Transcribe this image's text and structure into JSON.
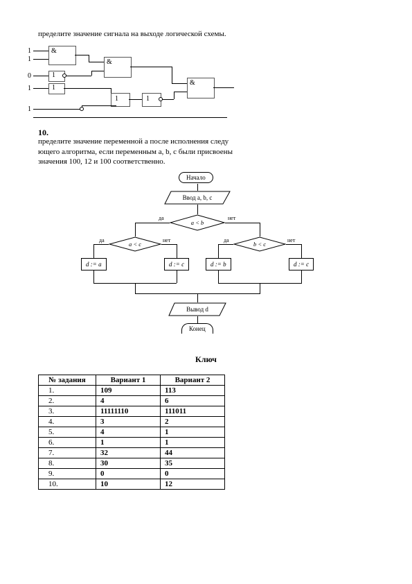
{
  "task9": {
    "text": "пределите значение сигнала на выходе логической схемы.",
    "inputs": [
      "1",
      "1",
      "0",
      "1",
      "1"
    ],
    "gates": {
      "and": "&",
      "one": "1"
    }
  },
  "task10": {
    "num": "10.",
    "text1": "пределите значение переменной a после исполнения следу",
    "text2": "ющего алгоритма, если переменным a, b, c были присвоены",
    "text3": "значения 100, 12 и 100 соответственно."
  },
  "flowchart": {
    "start": "Начало",
    "input": "Ввод a, b, c",
    "dec1": "a < b",
    "dec2": "a < c",
    "dec3": "b < c",
    "p1": "d := a",
    "p2": "d := c",
    "p3": "d := b",
    "p4": "d := c",
    "output": "Вывод d",
    "end": "Конец",
    "yes": "да",
    "no": "нет"
  },
  "key": {
    "title": "Ключ",
    "columns": [
      "№ задания",
      "Вариант 1",
      "Вариант 2"
    ],
    "rows": [
      [
        "1.",
        "109",
        "113"
      ],
      [
        "2.",
        "4",
        "6"
      ],
      [
        "3.",
        "11111110",
        "111011"
      ],
      [
        "4.",
        "3",
        "2"
      ],
      [
        "5.",
        "4",
        "1"
      ],
      [
        "6.",
        "1",
        "1"
      ],
      [
        "7.",
        "32",
        "44"
      ],
      [
        "8.",
        "30",
        "35"
      ],
      [
        "9.",
        "0",
        "0"
      ],
      [
        "10.",
        "10",
        "12"
      ]
    ]
  },
  "colors": {
    "line": "#000000",
    "bg": "#ffffff"
  }
}
